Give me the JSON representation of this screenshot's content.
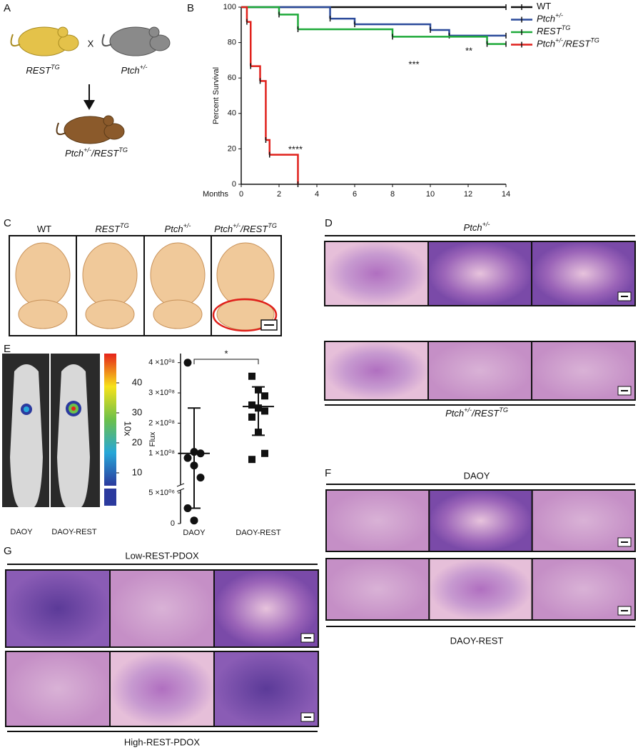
{
  "panel_labels": [
    "A",
    "B",
    "C",
    "D",
    "E",
    "F",
    "G"
  ],
  "panel_a": {
    "parents": [
      [
        {
          "text": "REST"
        },
        {
          "text": "TG",
          "sup": true
        }
      ],
      [
        {
          "text": "Ptch"
        },
        {
          "text": "+/-",
          "sup": true
        }
      ]
    ],
    "cross": "X",
    "offspring": [
      {
        "text": "Ptch"
      },
      {
        "text": "+/-",
        "sup": true
      },
      {
        "text": "/REST"
      },
      {
        "text": "TG",
        "sup": true
      }
    ]
  },
  "chart_data": [
    {
      "type": "line",
      "step": true,
      "ylabel": "Percent Survival",
      "xlabel": "Months",
      "xlim": [
        0,
        14
      ],
      "xticks": [
        0,
        2,
        4,
        6,
        8,
        10,
        12,
        14
      ],
      "ylim": [
        0,
        100
      ],
      "yticks": [
        0,
        20,
        40,
        60,
        80,
        100
      ],
      "series": [
        {
          "name": [
            {
              "text": "WT"
            }
          ],
          "color": "#111111",
          "x": [
            0,
            14
          ],
          "values": [
            100,
            100
          ]
        },
        {
          "name": [
            {
              "text": "Ptch"
            },
            {
              "text": "+/-",
              "sup": true
            }
          ],
          "color": "#2c4b9b",
          "x": [
            0,
            4.7,
            6,
            10,
            11,
            14
          ],
          "values": [
            100,
            93.5,
            90.3,
            87.1,
            83.9,
            83.9
          ]
        },
        {
          "name": [
            {
              "text": "REST"
            },
            {
              "text": "TG",
              "sup": true
            }
          ],
          "color": "#1faa3a",
          "x": [
            0,
            2,
            3,
            8,
            13,
            14
          ],
          "values": [
            100,
            95.8,
            87.5,
            83.3,
            79.2,
            79.2
          ]
        },
        {
          "name": [
            {
              "text": "Ptch"
            },
            {
              "text": "+/-",
              "sup": true
            },
            {
              "text": "/REST"
            },
            {
              "text": "TG",
              "sup": true
            }
          ],
          "color": "#e0201b",
          "x": [
            0,
            0.3,
            0.5,
            1,
            1.3,
            1.5,
            3
          ],
          "values": [
            100,
            91.7,
            66.7,
            58.3,
            25,
            16.7,
            0
          ]
        }
      ],
      "annotations": [
        "**",
        "***",
        "****"
      ]
    },
    {
      "type": "scatter",
      "ylabel": "Flux",
      "categories": [
        "DAOY",
        "DAOY-REST"
      ],
      "markers": [
        "circle",
        "square"
      ],
      "values": [
        [
          400000000,
          105000000,
          100000000,
          85000000,
          60000000,
          20000000,
          2500000,
          500000
        ],
        [
          355000000,
          310000000,
          290000000,
          260000000,
          250000000,
          240000000,
          220000000,
          170000000,
          100000000,
          80000000
        ]
      ],
      "mean": [
        100000000,
        255000000
      ],
      "error_low": [
        2500000,
        160000000
      ],
      "error_high": [
        250000000,
        320000000
      ],
      "ylim": [
        0,
        430000000
      ],
      "ybreak": [
        5000000,
        100000000
      ],
      "yticks": [
        0,
        {
          "value": 5000000,
          "label": "5 ×10⁰⁶"
        },
        {
          "value": 100000000,
          "label": "1 ×10⁰⁸"
        },
        {
          "value": 200000000,
          "label": "2 ×10⁰⁸"
        },
        {
          "value": 300000000,
          "label": "3 ×10⁰⁸"
        },
        {
          "value": 400000000,
          "label": "4 ×10⁰⁸"
        }
      ],
      "annotation": "*"
    }
  ],
  "panel_c": {
    "columns": [
      [
        {
          "text": "WT"
        }
      ],
      [
        {
          "text": "REST"
        },
        {
          "text": "TG",
          "sup": true
        }
      ],
      [
        {
          "text": "Ptch"
        },
        {
          "text": "+/-",
          "sup": true
        }
      ],
      [
        {
          "text": "Ptch"
        },
        {
          "text": "+/-",
          "sup": true
        },
        {
          "text": "/REST"
        },
        {
          "text": "TG",
          "sup": true
        }
      ]
    ]
  },
  "panel_d": {
    "top_label": [
      {
        "text": "Ptch"
      },
      {
        "text": "+/-",
        "sup": true
      }
    ],
    "bottom_label": [
      {
        "text": "Ptch"
      },
      {
        "text": "+/-",
        "sup": true
      },
      {
        "text": "/REST"
      },
      {
        "text": "TG",
        "sup": true
      }
    ]
  },
  "panel_e": {
    "images": [
      "DAOY",
      "DAOY-REST"
    ],
    "colorbar_label": "10x",
    "colorbar_ticks": [
      10,
      20,
      30,
      40
    ]
  },
  "panel_f": {
    "top_label": "DAOY",
    "bottom_label": "DAOY-REST"
  },
  "panel_g": {
    "top_label": "Low-REST-PDOX",
    "bottom_label": "High-REST-PDOX"
  }
}
